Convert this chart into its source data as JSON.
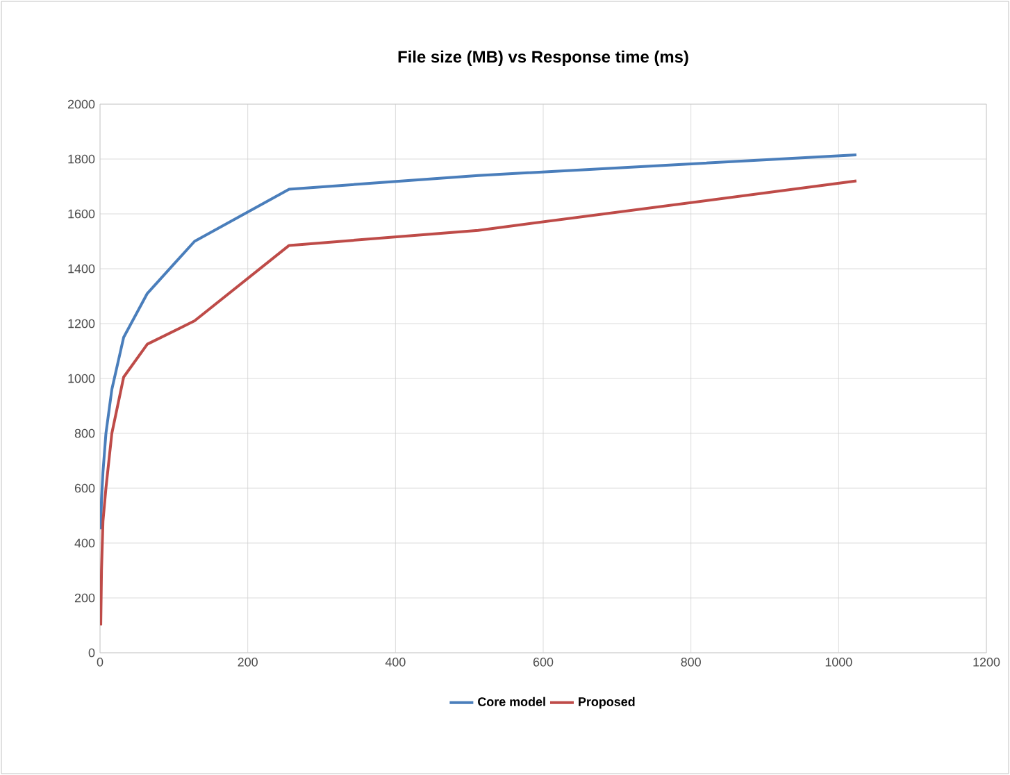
{
  "chart_data": {
    "type": "line",
    "title": "File size (MB) vs Response time (ms)",
    "x": [
      1,
      2,
      4,
      8,
      16,
      32,
      64,
      128,
      256,
      512,
      1024
    ],
    "series": [
      {
        "name": "Core model",
        "color": "#4a7ebb",
        "values": [
          450,
          560,
          660,
          800,
          960,
          1150,
          1310,
          1500,
          1690,
          1740,
          1815
        ]
      },
      {
        "name": "Proposed",
        "color": "#be4b48",
        "values": [
          100,
          300,
          480,
          600,
          800,
          1005,
          1125,
          1210,
          1485,
          1540,
          1720
        ]
      }
    ],
    "xlim": [
      0,
      1200
    ],
    "xticks": [
      0,
      200,
      400,
      600,
      800,
      1000,
      1200
    ],
    "ylim": [
      0,
      2000
    ],
    "yticks": [
      0,
      200,
      400,
      600,
      800,
      1000,
      1200,
      1400,
      1600,
      1800,
      2000
    ],
    "grid": true,
    "legend": "bottom",
    "marker": "none",
    "line_style": "solid"
  }
}
